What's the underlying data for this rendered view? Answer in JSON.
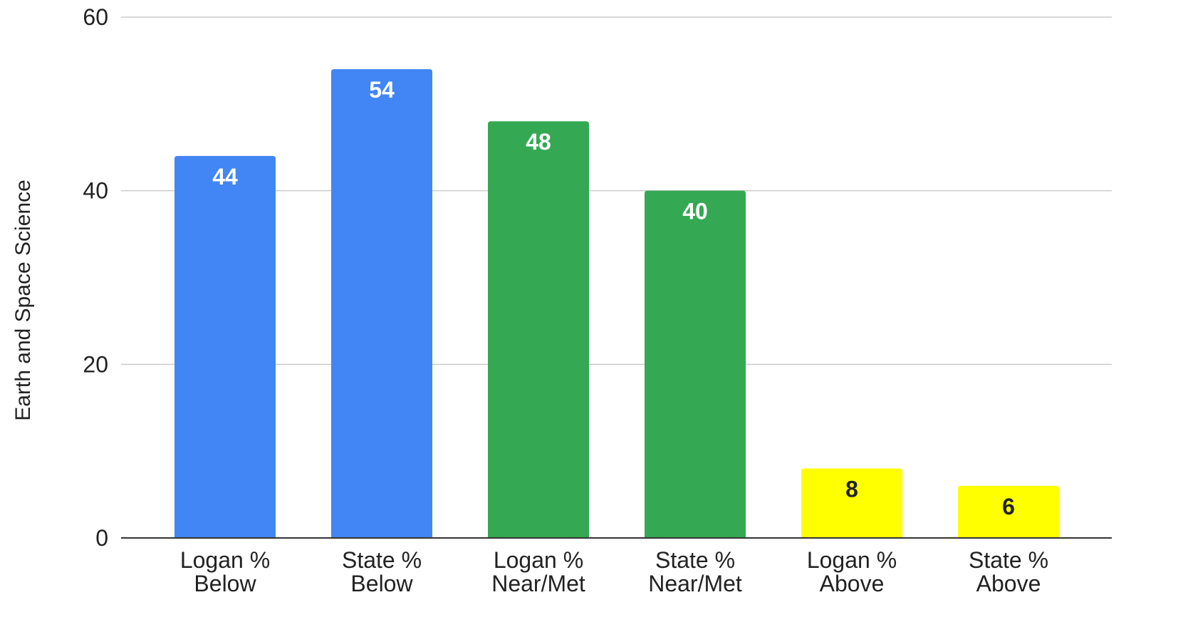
{
  "chart_data": {
    "type": "bar",
    "categories": [
      [
        "Logan %",
        "Below"
      ],
      [
        "State %",
        "Below"
      ],
      [
        "Logan %",
        "Near/Met"
      ],
      [
        "State %",
        "Near/Met"
      ],
      [
        "Logan %",
        "Above"
      ],
      [
        "State %",
        "Above"
      ]
    ],
    "values": [
      44,
      54,
      48,
      40,
      8,
      6
    ],
    "bar_colors": [
      "#4285F4",
      "#4285F4",
      "#34A853",
      "#34A853",
      "#FFFF00",
      "#FFFF00"
    ],
    "label_colors": [
      "#ffffff",
      "#ffffff",
      "#ffffff",
      "#ffffff",
      "#222222",
      "#222222"
    ],
    "title": "",
    "xlabel": "",
    "ylabel": "Earth and Space Science",
    "ylim": [
      0,
      60
    ],
    "yticks": [
      0,
      20,
      40,
      60
    ],
    "grid": true,
    "legend": "none"
  }
}
